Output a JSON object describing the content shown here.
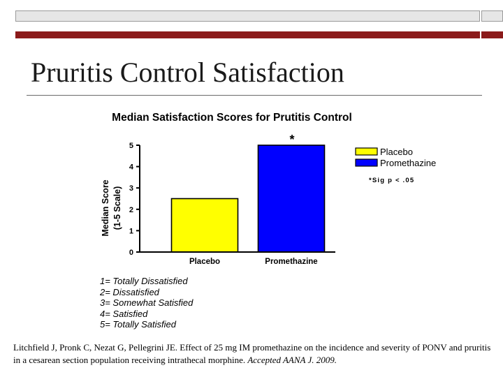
{
  "slide": {
    "title": "Pruritis Control Satisfaction"
  },
  "colors": {
    "accent_red": "#8b1a1a",
    "bar_frame": "#e6e6e6",
    "placebo": "#ffff00",
    "promethazine": "#0000ff"
  },
  "chart_data": {
    "type": "bar",
    "title": "Median Satisfaction Scores for Prutitis Control",
    "ylabel_line1": "Median Score",
    "ylabel_line2": "(1-5 Scale)",
    "xlabel": "",
    "categories": [
      "Placebo",
      "Promethazine"
    ],
    "values": [
      2.5,
      5
    ],
    "ylim": [
      0,
      5
    ],
    "yticks": [
      "0",
      "1",
      "2",
      "3",
      "4",
      "5"
    ],
    "bar_colors": [
      "#ffff00",
      "#0000ff"
    ],
    "significance_marker": "*",
    "legend": {
      "placement": "top-right",
      "entries": [
        {
          "label": "Placebo",
          "color": "#ffff00"
        },
        {
          "label": "Promethazine",
          "color": "#0000ff"
        }
      ]
    },
    "annotation": "*Sig p < .05",
    "grid": false
  },
  "scale_key": [
    "1= Totally Dissatisfied",
    "2= Dissatisfied",
    "3= Somewhat Satisfied",
    "4= Satisfied",
    "5= Totally Satisfied"
  ],
  "citation": {
    "text": "Litchfield J, Pronk C, Nezat G, Pellegrini JE. Effect of 25 mg IM promethazine on the incidence and severity of PONV and pruritis in a cesarean section population receiving intrathecal morphine.",
    "journal": "Accepted AANA J. 2009."
  }
}
